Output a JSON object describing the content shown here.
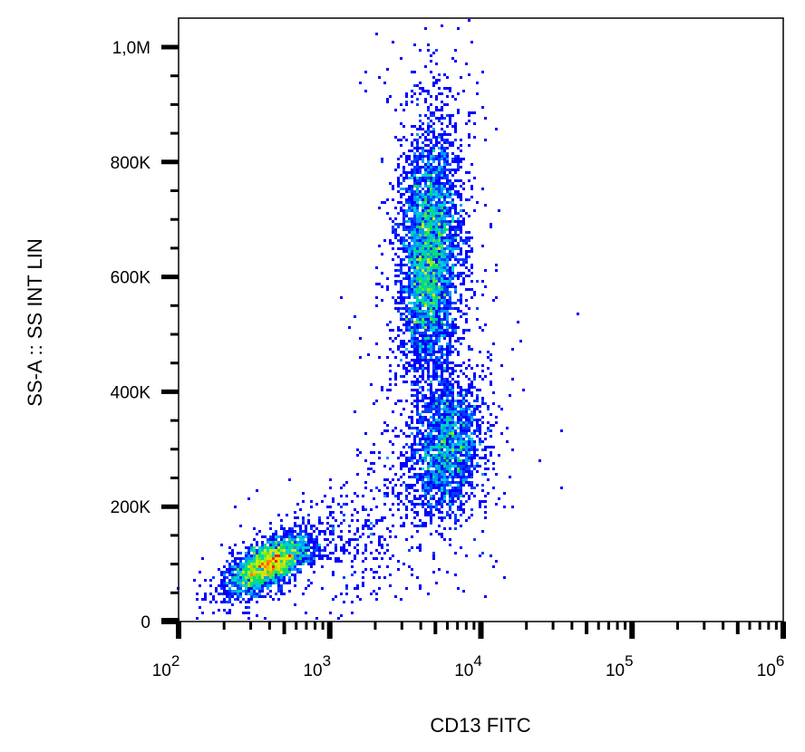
{
  "chart_data": {
    "type": "scatter",
    "subtype": "density-dot-plot",
    "xlabel": "CD13 FITC",
    "ylabel": "SS-A :: SS INT LIN",
    "x_scale": "log",
    "xlim": [
      100,
      1000000
    ],
    "ylim": [
      0,
      1000000
    ],
    "x_ticks": [
      {
        "base": "10",
        "exp": "2",
        "value": 100
      },
      {
        "base": "10",
        "exp": "3",
        "value": 1000
      },
      {
        "base": "10",
        "exp": "4",
        "value": 10000
      },
      {
        "base": "10",
        "exp": "5",
        "value": 100000
      },
      {
        "base": "10",
        "exp": "6",
        "value": 1000000
      }
    ],
    "y_ticks": [
      {
        "label": "0",
        "value": 0
      },
      {
        "label": "200K",
        "value": 200000
      },
      {
        "label": "400K",
        "value": 400000
      },
      {
        "label": "600K",
        "value": 600000
      },
      {
        "label": "800K",
        "value": 800000
      },
      {
        "label": "1,0M",
        "value": 1000000
      }
    ],
    "grid": false,
    "colormap": [
      "#0000ff",
      "#00c8ff",
      "#00e060",
      "#c8f000",
      "#ffd000",
      "#ff2000"
    ],
    "populations": [
      {
        "x_center": 400,
        "x_log_sd": 0.13,
        "y_center": 100000,
        "y_sd": 25000,
        "events": 2600,
        "correlation": 0.6
      },
      {
        "x_center": 4600,
        "x_log_sd": 0.1,
        "y_center": 640000,
        "y_sd": 110000,
        "events": 4500,
        "correlation": 0.1
      },
      {
        "x_center": 6000,
        "x_log_sd": 0.12,
        "y_center": 300000,
        "y_sd": 60000,
        "events": 2000,
        "correlation": 0.2
      },
      {
        "x_center": 1800,
        "x_log_sd": 0.25,
        "y_center": 160000,
        "y_sd": 70000,
        "events": 350,
        "correlation": 0.5
      }
    ]
  }
}
